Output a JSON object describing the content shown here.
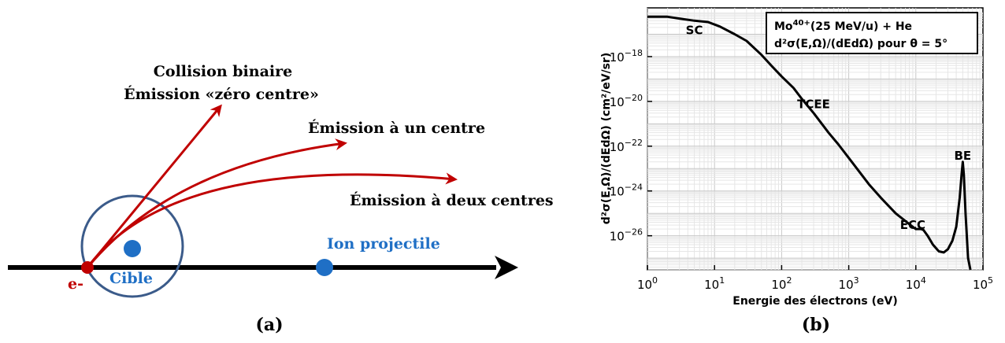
{
  "panel_a": {
    "caption": "(a)",
    "labels": {
      "binary_line1": "Collision binaire",
      "binary_line2": "Émission «zéro centre»",
      "one_center": "Émission à un centre",
      "two_center": "Émission à deux centres",
      "projectile": "Ion projectile",
      "target": "Cible",
      "electron": "e-"
    },
    "colors": {
      "axis": "#000000",
      "arrows": "#c00000",
      "circle": "#3b5b8a",
      "dots": "#1f6fc5"
    }
  },
  "panel_b": {
    "caption": "(b)",
    "legend_line1": "Mo",
    "legend_line1_sup": "40+",
    "legend_line1_rest": "(25 MeV/u) + He",
    "legend_line2": "d²σ(E,Ω)/(dEdΩ) pour θ = 5°",
    "ylabel": "d²σ(E,Ω)/(dEdΩ) (cm²/eV/sr)",
    "annotations": [
      {
        "text": "SC",
        "x": 5,
        "y": 1e-17
      },
      {
        "text": "TCEE",
        "x": 300,
        "y": 5e-21
      },
      {
        "text": "ECC",
        "x": 9000,
        "y": 2e-26
      },
      {
        "text": "BE",
        "x": 50000,
        "y": 2.5e-23
      }
    ]
  },
  "chart_data": {
    "type": "line",
    "title": "",
    "xlabel": "Energie des électrons (eV)",
    "ylabel": "d²σ(E,Ω)/(dEdΩ) (cm²/eV/sr)",
    "xscale": "log",
    "yscale": "log",
    "xlim": [
      1,
      100000
    ],
    "ylim": [
      3e-28,
      1.5e-16
    ],
    "xticks": [
      "10^0",
      "10^1",
      "10^2",
      "10^3",
      "10^4",
      "10^5"
    ],
    "yticks": [
      "10^-18",
      "10^-20",
      "10^-22",
      "10^-24",
      "10^-26"
    ],
    "grid": true,
    "series": [
      {
        "x": [
          1,
          2,
          3,
          5,
          8,
          12,
          20,
          30,
          50,
          70,
          100,
          150,
          200,
          300,
          500,
          700,
          1000,
          2000,
          3000,
          5000,
          7000,
          9000,
          10000,
          12000,
          13000,
          15000,
          18000,
          22000,
          26000,
          30000,
          35000,
          40000,
          45000,
          48000,
          50000,
          52000,
          55000,
          60000,
          65000
        ],
        "y": [
          6e-17,
          6e-17,
          5e-17,
          4e-17,
          3.5e-17,
          2.2e-17,
          1e-17,
          5e-18,
          1.2e-18,
          4e-19,
          1.3e-19,
          4e-20,
          1.3e-20,
          3e-21,
          4e-22,
          1.2e-22,
          3e-23,
          2e-24,
          5e-25,
          1e-25,
          4.5e-26,
          2.5e-26,
          2e-26,
          2e-26,
          1.8e-26,
          1e-26,
          4e-27,
          2e-27,
          1.8e-27,
          2.5e-27,
          6e-27,
          2.5e-26,
          5e-25,
          5e-24,
          2e-23,
          5e-24,
          1e-25,
          1e-27,
          1e-28
        ]
      }
    ]
  }
}
